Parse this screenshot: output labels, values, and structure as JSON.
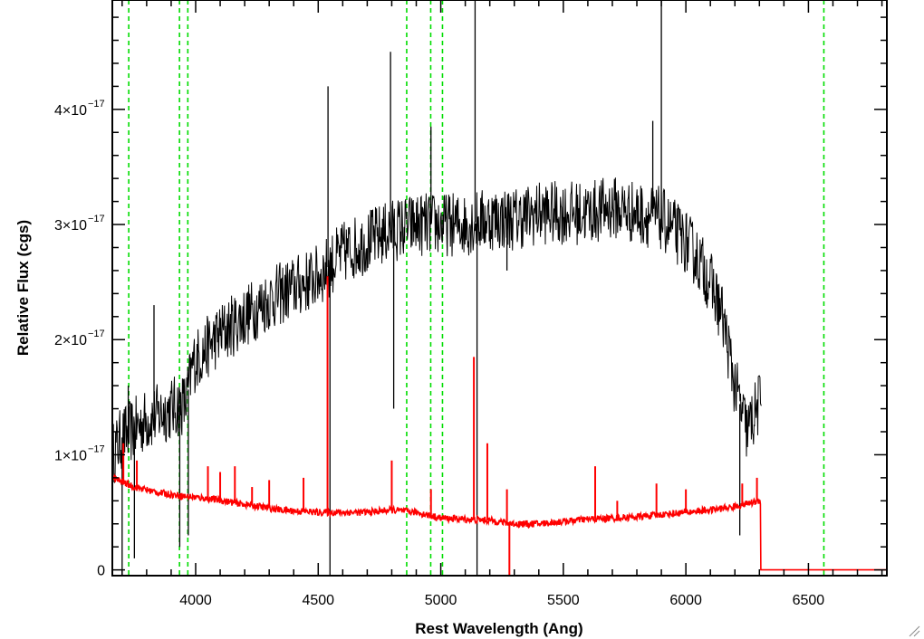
{
  "chart_data": {
    "type": "line",
    "title": "",
    "xlabel": "Rest Wavelength (Ang)",
    "ylabel": "Relative Flux (cgs)",
    "xlim": [
      3660,
      6820
    ],
    "ylim": [
      -5e-19,
      4.95e-17
    ],
    "x_ticks": [
      {
        "value": 4000,
        "label": "4000"
      },
      {
        "value": 4500,
        "label": "4500"
      },
      {
        "value": 5000,
        "label": "5000"
      },
      {
        "value": 5500,
        "label": "5500"
      },
      {
        "value": 6000,
        "label": "6000"
      },
      {
        "value": 6500,
        "label": "6500"
      }
    ],
    "y_ticks": [
      {
        "value": 0,
        "mantissa": "0",
        "exp": ""
      },
      {
        "value": 1e-17,
        "mantissa": "1×10",
        "exp": "−17"
      },
      {
        "value": 2e-17,
        "mantissa": "2×10",
        "exp": "−17"
      },
      {
        "value": 3e-17,
        "mantissa": "3×10",
        "exp": "−17"
      },
      {
        "value": 4e-17,
        "mantissa": "4×10",
        "exp": "−17"
      }
    ],
    "grid": false,
    "series": [
      {
        "role": "observed spectrum",
        "color": "#000000",
        "noise": 2.8e-18,
        "x": [
          3660,
          3700,
          3800,
          3900,
          3960,
          3990,
          4100,
          4200,
          4300,
          4400,
          4500,
          4600,
          4700,
          4800,
          4900,
          5000,
          5100,
          5200,
          5300,
          5400,
          5500,
          5600,
          5700,
          5800,
          5900,
          6000,
          6050,
          6100,
          6150,
          6200,
          6250,
          6300,
          6310
        ],
        "y": [
          1e-17,
          1.15e-17,
          1.3e-17,
          1.4e-17,
          1.45e-17,
          1.8e-17,
          2.05e-17,
          2.2e-17,
          2.35e-17,
          2.45e-17,
          2.55e-17,
          2.75e-17,
          2.85e-17,
          2.95e-17,
          3e-17,
          3e-17,
          3e-17,
          3.05e-17,
          3.05e-17,
          3.1e-17,
          3.1e-17,
          3.1e-17,
          3.15e-17,
          3.1e-17,
          3.05e-17,
          2.85e-17,
          2.7e-17,
          2.5e-17,
          2.2e-17,
          1.6e-17,
          1.2e-17,
          1.45e-17,
          1.55e-17
        ],
        "spikes": [
          {
            "x": 3700,
            "y": -3e-18
          },
          {
            "x": 3725,
            "y": 1.6e-17
          },
          {
            "x": 3750,
            "y": 1e-18
          },
          {
            "x": 3830,
            "y": 2.3e-17
          },
          {
            "x": 3935,
            "y": 2e-18
          },
          {
            "x": 3970,
            "y": 3e-18
          },
          {
            "x": 4540,
            "y": 4.2e-17
          },
          {
            "x": 4548,
            "y": -2e-18
          },
          {
            "x": 4795,
            "y": 4.5e-17
          },
          {
            "x": 4808,
            "y": 1.4e-17
          },
          {
            "x": 4960,
            "y": 3.85e-17
          },
          {
            "x": 5140,
            "y": 4.95e-17
          },
          {
            "x": 5148,
            "y": -2e-18
          },
          {
            "x": 5270,
            "y": 2.6e-17
          },
          {
            "x": 5900,
            "y": 4.95e-17
          },
          {
            "x": 5865,
            "y": 3.9e-17
          },
          {
            "x": 6220,
            "y": 3e-18
          }
        ]
      },
      {
        "role": "model fit",
        "color": "#ff0000",
        "noise": 3e-19,
        "x": [
          3660,
          3750,
          3850,
          3950,
          4050,
          4200,
          4350,
          4500,
          4600,
          4700,
          4800,
          4900,
          5000,
          5100,
          5200,
          5300,
          5400,
          5500,
          5600,
          5700,
          5800,
          5900,
          6000,
          6100,
          6200,
          6300,
          6305,
          6306,
          6820
        ],
        "y": [
          8e-18,
          7.2e-18,
          6.7e-18,
          6.4e-18,
          6.2e-18,
          5.7e-18,
          5.2e-18,
          5e-18,
          5e-18,
          5e-18,
          5.2e-18,
          5e-18,
          4.5e-18,
          4.4e-18,
          4.3e-18,
          4e-18,
          4e-18,
          4.2e-18,
          4.4e-18,
          4.5e-18,
          4.6e-18,
          4.8e-18,
          5e-18,
          5.2e-18,
          5.5e-18,
          6e-18,
          6e-18,
          0,
          0
        ],
        "spikes": [
          {
            "x": 3705,
            "y": 1.1e-17
          },
          {
            "x": 3760,
            "y": 9.5e-18
          },
          {
            "x": 4050,
            "y": 9e-18
          },
          {
            "x": 4100,
            "y": 8.5e-18
          },
          {
            "x": 4160,
            "y": 9e-18
          },
          {
            "x": 4230,
            "y": 7.2e-18
          },
          {
            "x": 4300,
            "y": 7.8e-18
          },
          {
            "x": 4440,
            "y": 8e-18
          },
          {
            "x": 4538,
            "y": 2.55e-17
          },
          {
            "x": 4800,
            "y": 9.5e-18
          },
          {
            "x": 4960,
            "y": 7e-18
          },
          {
            "x": 5135,
            "y": 1.85e-17
          },
          {
            "x": 5190,
            "y": 1.1e-17
          },
          {
            "x": 5270,
            "y": 7e-18
          },
          {
            "x": 5280,
            "y": -5e-19
          },
          {
            "x": 5630,
            "y": 9e-18
          },
          {
            "x": 5720,
            "y": 6e-18
          },
          {
            "x": 5880,
            "y": 7.5e-18
          },
          {
            "x": 6000,
            "y": 7e-18
          },
          {
            "x": 6230,
            "y": 7.5e-18
          },
          {
            "x": 6290,
            "y": 8e-18
          }
        ]
      }
    ],
    "reference_lines": {
      "color": "#00dd00",
      "style": "dashed",
      "x": [
        3727,
        3934,
        3968,
        4861,
        4959,
        5007,
        6563
      ]
    }
  }
}
